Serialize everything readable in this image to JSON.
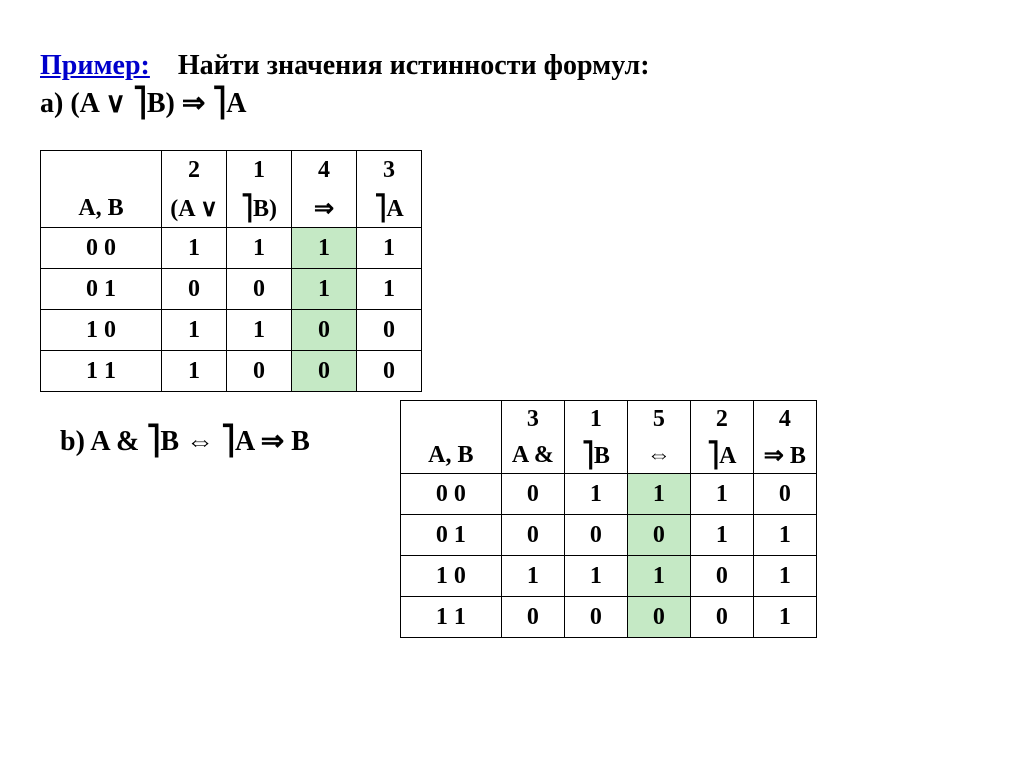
{
  "heading": {
    "label": "Пример:",
    "task": "Найти значения истинности формул:"
  },
  "formulaA": {
    "label": "a) (A ∨ ⎤B) ⇒ ⎤A"
  },
  "formulaB": {
    "label": "b) A & ⎤B ⇔ ⎤A ⇒ B"
  },
  "tableA": {
    "highlight_col": 3,
    "highlight_color": "#c5e9c5",
    "fontsize": 24,
    "header_top": [
      "",
      "2",
      "1",
      "4",
      "3"
    ],
    "header_bottom": [
      "A, B",
      "(A ∨",
      "⎤B)",
      "⇒",
      "⎤A"
    ],
    "rows": [
      [
        "0  0",
        "1",
        "1",
        "1",
        "1"
      ],
      [
        "0  1",
        "0",
        "0",
        "1",
        "1"
      ],
      [
        "1  0",
        "1",
        "1",
        "0",
        "0"
      ],
      [
        "1  1",
        "1",
        "0",
        "0",
        "0"
      ]
    ]
  },
  "tableB": {
    "highlight_col": 3,
    "highlight_color": "#c5e9c5",
    "fontsize": 24,
    "header_top": [
      "",
      "3",
      "1",
      "5",
      "2",
      "4"
    ],
    "header_bottom": [
      "A, B",
      "A  &",
      "⎤B",
      "⇔",
      "⎤A",
      "⇒   B"
    ],
    "rows": [
      [
        "0  0",
        "0",
        "1",
        "1",
        "1",
        "0"
      ],
      [
        "0  1",
        "0",
        "0",
        "0",
        "1",
        "1"
      ],
      [
        "1  0",
        "1",
        "1",
        "1",
        "0",
        "1"
      ],
      [
        "1  1",
        "0",
        "0",
        "0",
        "0",
        "1"
      ]
    ]
  }
}
